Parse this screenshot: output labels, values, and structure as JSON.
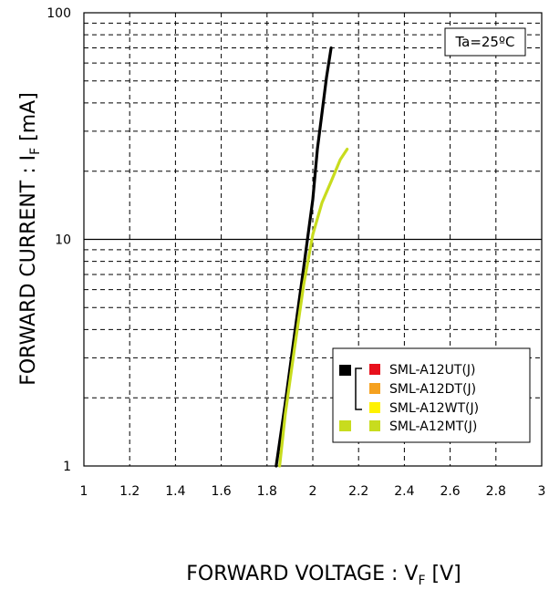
{
  "chart_data": {
    "type": "line",
    "x_scale": "linear",
    "y_scale": "log",
    "xlim": [
      1,
      3
    ],
    "ylim": [
      1,
      100
    ],
    "x_ticks": [
      "1",
      "1.2",
      "1.4",
      "1.6",
      "1.8",
      "2",
      "2.2",
      "2.4",
      "2.6",
      "2.8",
      "3"
    ],
    "y_ticks": [
      "1",
      "10",
      "100"
    ],
    "xlabel": {
      "main": "FORWARD VOLTAGE : V",
      "sub": "F",
      "unit": " [V]"
    },
    "ylabel": {
      "main": "FORWARD CURRENT : I",
      "sub": "F",
      "unit": " [mA]"
    },
    "annotation": "Ta=25ºC",
    "grid": "dashed minor, solid major",
    "legend_position": "bottom-right",
    "series": [
      {
        "name_group": [
          "SML-A12UT(J)",
          "SML-A12DT(J)",
          "SML-A12WT(J)"
        ],
        "color": "#000000",
        "x": [
          1.84,
          1.88,
          1.92,
          1.96,
          2.0,
          2.02,
          2.04,
          2.06,
          2.08
        ],
        "y": [
          1,
          1.9,
          3.8,
          7.5,
          15,
          25,
          36,
          52,
          70
        ]
      },
      {
        "name_group": [
          "SML-A12MT(J)"
        ],
        "color": "#c8dc1e",
        "x": [
          1.855,
          1.88,
          1.92,
          1.96,
          2.0,
          2.04,
          2.08,
          2.12,
          2.15
        ],
        "y": [
          1,
          1.7,
          3.3,
          6.3,
          10.5,
          14.5,
          18,
          22.5,
          25
        ]
      }
    ],
    "legend": {
      "entries": [
        {
          "label": "SML-A12UT(J)",
          "swatch": "#e8101c"
        },
        {
          "label": "SML-A12DT(J)",
          "swatch": "#f5a11f"
        },
        {
          "label": "SML-A12WT(J)",
          "swatch": "#fff200"
        },
        {
          "label": "SML-A12MT(J)",
          "swatch": "#c8dc1e"
        }
      ],
      "group_line_color": "#000000",
      "mt_line_color": "#c8dc1e"
    }
  }
}
